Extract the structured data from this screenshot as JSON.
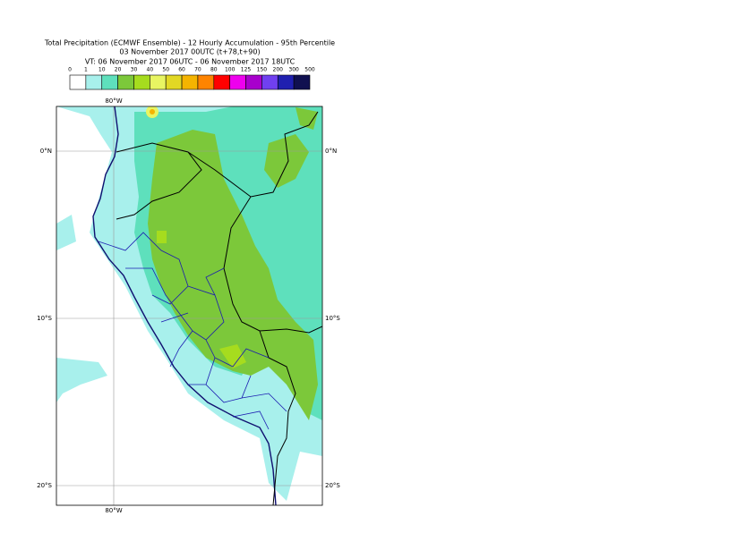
{
  "header": {
    "title": "Total Precipitation (ECMWF Ensemble) - 12 Hourly Accumulation - 95th Percentile",
    "subtitle": "03 November 2017 00UTC (t+78,t+90)",
    "valid_time": "VT: 06 November 2017 06UTC - 06 November 2017 18UTC"
  },
  "legend": {
    "labels": [
      "0",
      "1",
      "10",
      "20",
      "30",
      "40",
      "50",
      "60",
      "70",
      "80",
      "100",
      "125",
      "150",
      "200",
      "300",
      "500"
    ],
    "colors": [
      "#ffffff",
      "#a8f0ec",
      "#5ee0bc",
      "#7cc83a",
      "#a6dc1e",
      "#e8f562",
      "#e2d824",
      "#f5b400",
      "#ff8400",
      "#ff0000",
      "#ee00ee",
      "#a800cc",
      "#7040f0",
      "#2020b0",
      "#101050"
    ]
  },
  "map": {
    "lon_labels": [
      "80°W"
    ],
    "lat_labels": [
      "0°N",
      "10°S",
      "20°S"
    ]
  }
}
